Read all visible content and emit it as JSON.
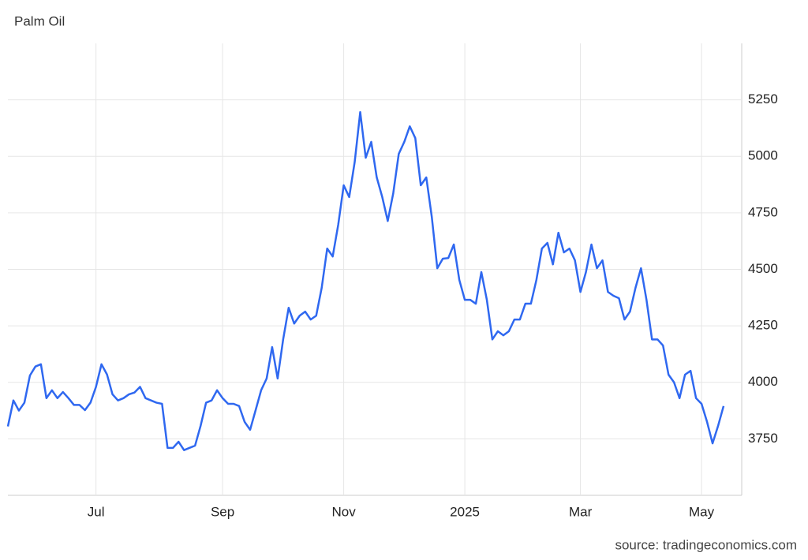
{
  "chart_data": {
    "type": "line",
    "title": "Palm Oil",
    "source": "source: tradingeconomics.com",
    "color": "#2f68f0",
    "grid": true,
    "categories": [
      null,
      null,
      null,
      null,
      null,
      null,
      null,
      null,
      null,
      null,
      null,
      null,
      null,
      null,
      null,
      null,
      "Jul",
      null,
      null,
      null,
      null,
      null,
      null,
      null,
      null,
      null,
      null,
      null,
      null,
      null,
      null,
      null,
      null,
      null,
      null,
      null,
      null,
      null,
      null,
      "Sep",
      null,
      null,
      null,
      null,
      null,
      null,
      null,
      null,
      null,
      null,
      null,
      null,
      null,
      null,
      null,
      null,
      null,
      null,
      null,
      null,
      null,
      "Nov",
      null,
      null,
      null,
      null,
      null,
      null,
      null,
      null,
      null,
      null,
      null,
      null,
      null,
      null,
      null,
      null,
      null,
      null,
      null,
      null,
      null,
      "2025",
      null,
      null,
      null,
      null,
      null,
      null,
      null,
      null,
      null,
      null,
      null,
      null,
      null,
      null,
      null,
      null,
      null,
      null,
      null,
      null,
      "Mar",
      null,
      null,
      null,
      null,
      null,
      null,
      null,
      null,
      null,
      null,
      null,
      null,
      null,
      null,
      null,
      null,
      null,
      null,
      null,
      null,
      null,
      "May",
      null,
      null,
      null,
      null
    ],
    "values": [
      3805,
      3920,
      3875,
      3910,
      4030,
      4070,
      4080,
      3930,
      3965,
      3930,
      3957,
      3930,
      3900,
      3900,
      3877,
      3910,
      3980,
      4080,
      4035,
      3947,
      3920,
      3930,
      3947,
      3955,
      3980,
      3930,
      3920,
      3910,
      3905,
      3710,
      3710,
      3737,
      3700,
      3710,
      3720,
      3807,
      3910,
      3920,
      3965,
      3930,
      3905,
      3905,
      3895,
      3825,
      3790,
      3877,
      3965,
      4017,
      4156,
      4017,
      4190,
      4330,
      4260,
      4295,
      4313,
      4278,
      4295,
      4418,
      4592,
      4557,
      4697,
      4872,
      4820,
      4976,
      5196,
      4994,
      5064,
      4907,
      4820,
      4714,
      4837,
      5011,
      5064,
      5133,
      5081,
      4872,
      4907,
      4732,
      4505,
      4547,
      4550,
      4610,
      4453,
      4365,
      4365,
      4348,
      4488,
      4365,
      4190,
      4226,
      4208,
      4226,
      4278,
      4278,
      4348,
      4348,
      4453,
      4592,
      4617,
      4522,
      4662,
      4575,
      4592,
      4540,
      4400,
      4488,
      4610,
      4505,
      4540,
      4400,
      4383,
      4372,
      4278,
      4313,
      4418,
      4505,
      4365,
      4190,
      4190,
      4163,
      4034,
      4000,
      3930,
      4034,
      4051,
      3930,
      3905,
      3825,
      3730,
      3807,
      3895
    ],
    "ylim": [
      3500,
      5500
    ],
    "yticks": [
      3750,
      4000,
      4250,
      4500,
      4750,
      5000,
      5250
    ]
  }
}
